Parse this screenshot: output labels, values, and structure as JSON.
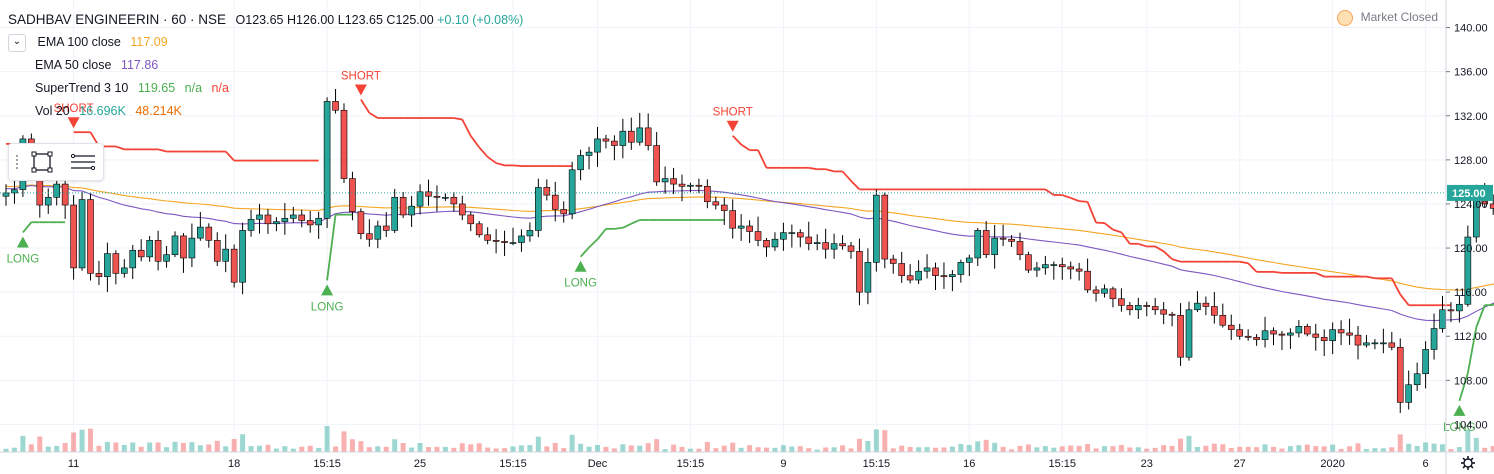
{
  "header": {
    "symbol": "SADHBAV ENGINEERIN · 60 · NSE",
    "open": "O123.65",
    "high": "H126.00",
    "low": "L123.65",
    "close": "C125.00",
    "change": "+0.10 (+0.08%)"
  },
  "legend": {
    "ema100": {
      "name": "EMA 100 close",
      "value": "117.09",
      "color": "#f5a623"
    },
    "ema50": {
      "name": "EMA 50 close",
      "value": "117.86",
      "color": "#7e57c2"
    },
    "supertrend": {
      "name": "SuperTrend 3 10",
      "value": "119.65",
      "na1": "n/a",
      "na2": "n/a",
      "color_up": "#4caf50",
      "color_down": "#f44336"
    },
    "volume": {
      "name": "Vol 20",
      "value1": "16.696K",
      "value2": "48.214K",
      "color1": "#26a69a",
      "color2": "#ef6c00"
    }
  },
  "market_status": "Market Closed",
  "icons": {
    "collapse": "chevron-down-icon",
    "rectangle": "rectangle-tool-icon",
    "lines": "horizontal-lines-icon",
    "settings": "gear-icon"
  },
  "last_price_label": "125.00",
  "colors": {
    "up": "#26a69a",
    "down": "#ef5350",
    "grid": "#f0f3fa",
    "axis_text": "#131722"
  },
  "chart_data": {
    "type": "candlestick",
    "ylim": [
      101.5,
      142.5
    ],
    "y_ticks": [
      104,
      108,
      112,
      116,
      120,
      124,
      128,
      132,
      136,
      140
    ],
    "y_tick_labels": [
      "104.00",
      "108.00",
      "112.00",
      "116.00",
      "120.00",
      "124.00",
      "128.00",
      "132.00",
      "136.00",
      "140.00"
    ],
    "x_tick_labels": [
      "11",
      "18",
      "15:15",
      "25",
      "15:15",
      "Dec",
      "15:15",
      "9",
      "15:15",
      "16",
      "15:15",
      "23",
      "27",
      "2020",
      "6"
    ],
    "x_tick_bars": [
      8,
      27,
      38,
      49,
      60,
      70,
      81,
      92,
      103,
      114,
      125,
      135,
      146,
      157,
      168
    ],
    "last_price": 125.0,
    "close": [
      125.0,
      125.3,
      129.9,
      128.2,
      123.9,
      124.6,
      125.8,
      123.9,
      118.2,
      124.4,
      117.7,
      117.4,
      119.5,
      117.7,
      118.2,
      119.8,
      119.2,
      120.7,
      118.8,
      119.4,
      121.1,
      119.1,
      120.9,
      121.9,
      120.7,
      118.8,
      119.9,
      116.9,
      121.6,
      122.6,
      123.0,
      122.2,
      122.4,
      122.7,
      123.0,
      122.5,
      122.1,
      122.7,
      133.3,
      132.5,
      126.3,
      123.3,
      121.3,
      120.8,
      122.0,
      121.6,
      124.6,
      123.0,
      123.8,
      125.1,
      124.7,
      124.6,
      124.6,
      124.0,
      123.0,
      122.2,
      121.2,
      120.7,
      120.6,
      120.5,
      120.5,
      121.1,
      121.6,
      125.5,
      124.8,
      123.5,
      123.1,
      127.1,
      128.4,
      128.7,
      129.9,
      129.7,
      129.3,
      130.6,
      129.6,
      130.9,
      129.3,
      126.0,
      126.3,
      125.8,
      125.6,
      125.7,
      125.6,
      124.2,
      123.9,
      123.4,
      121.8,
      122.0,
      121.5,
      120.7,
      120.1,
      120.8,
      121.4,
      121.4,
      121.0,
      120.4,
      120.5,
      119.9,
      120.4,
      120.2,
      119.7,
      116.0,
      118.7,
      124.8,
      119.0,
      118.6,
      117.5,
      117.1,
      117.9,
      118.2,
      117.5,
      117.4,
      117.6,
      118.7,
      119.1,
      121.6,
      119.4,
      120.9,
      120.8,
      120.6,
      119.4,
      118.0,
      118.2,
      118.5,
      118.5,
      118.3,
      118.1,
      117.9,
      116.2,
      115.9,
      116.3,
      115.4,
      114.8,
      114.4,
      114.8,
      114.7,
      114.4,
      114.0,
      113.9,
      110.1,
      114.4,
      115.0,
      114.7,
      113.9,
      113.0,
      112.6,
      112.0,
      111.9,
      111.7,
      112.5,
      112.2,
      112.1,
      112.3,
      112.9,
      112.2,
      111.9,
      111.6,
      112.6,
      112.3,
      112.1,
      111.2,
      111.4,
      111.4,
      111.4,
      111.0,
      106.0,
      107.6,
      108.6,
      110.8,
      112.7,
      114.4,
      114.3,
      114.9,
      121.0,
      124.6,
      124.0,
      123.6,
      126.1,
      126.7,
      124.4,
      126.1,
      126.4,
      125.0
    ]
  }
}
